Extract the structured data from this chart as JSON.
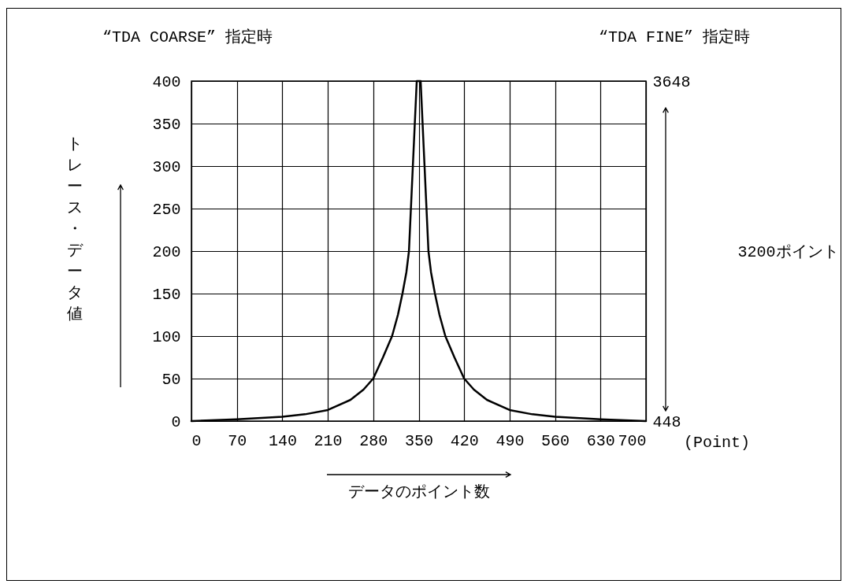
{
  "chart_data": {
    "type": "line",
    "annotations": [
      "“TDA COARSE” 指定時",
      "“TDA FINE” 指定時",
      "(Point)"
    ],
    "xlabel": "データのポイント数",
    "ylabel": "トレース・データ値",
    "y2label": "3200ポイント",
    "x": [
      0,
      70,
      140,
      175,
      210,
      245,
      265,
      280,
      295,
      309,
      318,
      325,
      331,
      335,
      338,
      341,
      344,
      347,
      350,
      353,
      356,
      359,
      362,
      365,
      369,
      375,
      382,
      391,
      405,
      420,
      435,
      455,
      490,
      525,
      560,
      630,
      700
    ],
    "series": [
      {
        "color": "#000000",
        "values": [
          0,
          2,
          5,
          8,
          13,
          25,
          37,
          50,
          75,
          100,
          125,
          150,
          175,
          200,
          250,
          300,
          350,
          400,
          400,
          400,
          350,
          300,
          250,
          200,
          175,
          150,
          125,
          100,
          75,
          50,
          37,
          25,
          13,
          8,
          5,
          2,
          0
        ]
      }
    ],
    "xlim": [
      0,
      700
    ],
    "xticks": [
      0,
      70,
      140,
      210,
      280,
      350,
      420,
      490,
      560,
      630,
      700
    ],
    "ylim": [
      0,
      400
    ],
    "yticks": [
      0,
      50,
      100,
      150,
      200,
      250,
      300,
      350,
      400
    ],
    "y2lim": [
      448,
      3648
    ],
    "y2ticks": [
      448,
      3648
    ],
    "grid": true,
    "marker": "none",
    "line_style": "solid"
  }
}
